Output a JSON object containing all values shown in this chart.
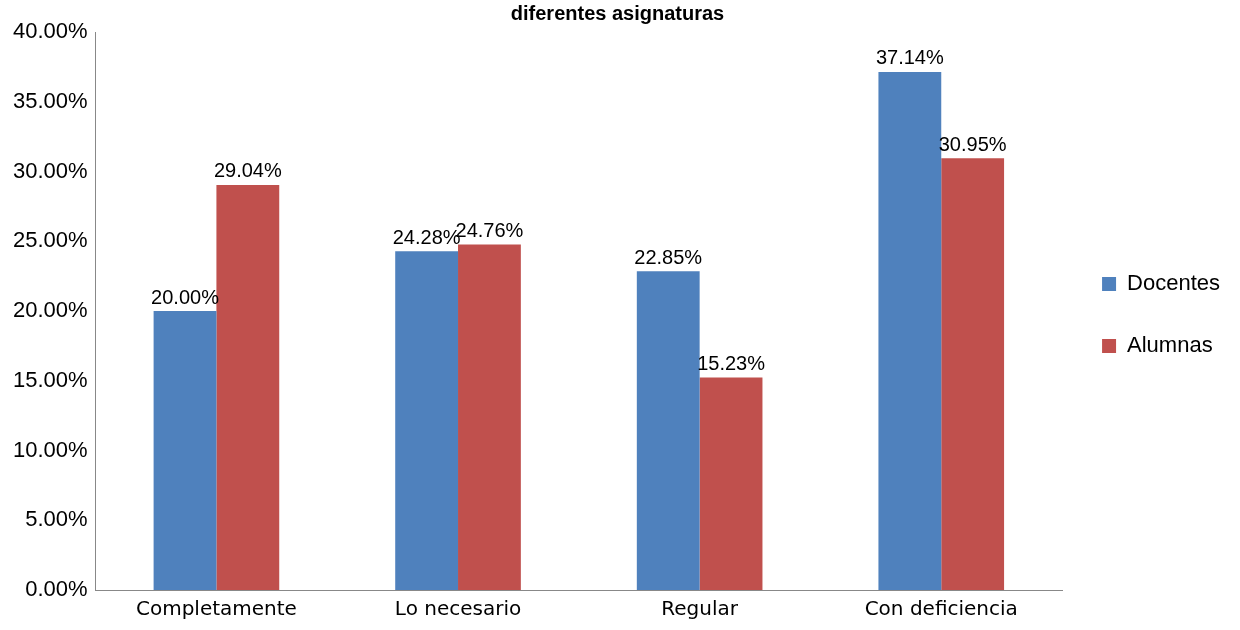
{
  "chart_data": {
    "type": "bar",
    "title": "diferentes asignaturas",
    "categories": [
      "Completamente",
      "Lo necesario",
      "Regular",
      "Con deficiencia"
    ],
    "series": [
      {
        "name": "Docentes",
        "color": "#4f81bd",
        "values": [
          20.0,
          24.28,
          22.85,
          37.14
        ],
        "value_labels": [
          "20.00%",
          "24.28%",
          "22.85%",
          "37.14%"
        ]
      },
      {
        "name": "Alumnas",
        "color": "#c0504d",
        "values": [
          29.04,
          24.76,
          15.23,
          30.95
        ],
        "value_labels": [
          "29.04%",
          "24.76%",
          "15.23%",
          "30.95%"
        ]
      }
    ],
    "ylim": [
      0,
      40
    ],
    "yticks": [
      {
        "value": 0,
        "label": "0.00%"
      },
      {
        "value": 5,
        "label": "5.00%"
      },
      {
        "value": 10,
        "label": "10.00%"
      },
      {
        "value": 15,
        "label": "15.00%"
      },
      {
        "value": 20,
        "label": "20.00%"
      },
      {
        "value": 25,
        "label": "25.00%"
      },
      {
        "value": 30,
        "label": "30.00%"
      },
      {
        "value": 35,
        "label": "35.00%"
      },
      {
        "value": 40,
        "label": "40.00%"
      }
    ],
    "grid": false,
    "legend": "right"
  }
}
